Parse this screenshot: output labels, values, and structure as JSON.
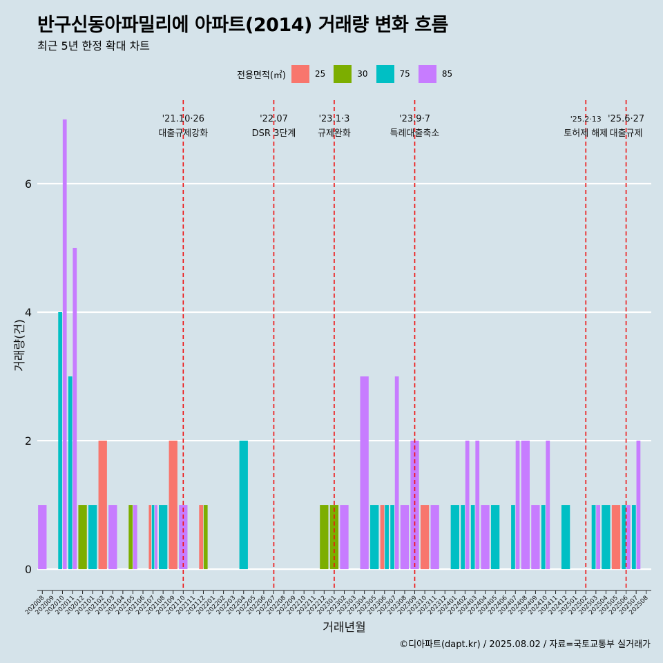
{
  "title": "반구신동아파밀리에 아파트(2014) 거래량 변화 흐름",
  "subtitle": "최근 5년 한정 확대 차트",
  "caption": "©디아파트(dapt.kr) / 2025.08.02 / 자료=국토교통부 실거래가",
  "legend": {
    "title": "전용면적(㎡)",
    "items": [
      {
        "label": "25",
        "color": "#F8766D"
      },
      {
        "label": "30",
        "color": "#7CAE00"
      },
      {
        "label": "75",
        "color": "#00BFC4"
      },
      {
        "label": "85",
        "color": "#C77CFF"
      }
    ]
  },
  "chart_data": {
    "type": "bar",
    "position": "dodge",
    "xlabel": "거래년월",
    "ylabel": "거래량(건)",
    "ylim": [
      -0.3,
      7.3
    ],
    "yticks": [
      0,
      2,
      4,
      6
    ],
    "categories": [
      "202008",
      "202009",
      "202010",
      "202011",
      "202012",
      "202101",
      "202102",
      "202103",
      "202104",
      "202105",
      "202106",
      "202107",
      "202108",
      "202109",
      "202110",
      "202111",
      "202112",
      "202201",
      "202202",
      "202203",
      "202204",
      "202205",
      "202206",
      "202207",
      "202208",
      "202209",
      "202210",
      "202211",
      "202212",
      "202301",
      "202302",
      "202303",
      "202304",
      "202305",
      "202306",
      "202307",
      "202308",
      "202309",
      "202310",
      "202311",
      "202312",
      "202401",
      "202402",
      "202403",
      "202404",
      "202405",
      "202406",
      "202407",
      "202408",
      "202409",
      "202410",
      "202411",
      "202412",
      "202501",
      "202502",
      "202503",
      "202504",
      "202505",
      "202506",
      "202507",
      "202508"
    ],
    "series": [
      {
        "name": "25",
        "color": "#F8766D",
        "points": [
          [
            "202102",
            2
          ],
          [
            "202107",
            1
          ],
          [
            "202109",
            2
          ],
          [
            "202112",
            1
          ],
          [
            "202306",
            1
          ],
          [
            "202310",
            1
          ],
          [
            "202505",
            1
          ]
        ]
      },
      {
        "name": "30",
        "color": "#7CAE00",
        "points": [
          [
            "202012",
            1
          ],
          [
            "202105",
            1
          ],
          [
            "202112",
            1
          ],
          [
            "202212",
            1
          ],
          [
            "202301",
            1
          ]
        ]
      },
      {
        "name": "75",
        "color": "#00BFC4",
        "points": [
          [
            "202010",
            4
          ],
          [
            "202011",
            3
          ],
          [
            "202101",
            1
          ],
          [
            "202107",
            1
          ],
          [
            "202108",
            1
          ],
          [
            "202204",
            2
          ],
          [
            "202305",
            1
          ],
          [
            "202306",
            1
          ],
          [
            "202307",
            1
          ],
          [
            "202401",
            1
          ],
          [
            "202402",
            1
          ],
          [
            "202403",
            1
          ],
          [
            "202405",
            1
          ],
          [
            "202407",
            1
          ],
          [
            "202410",
            1
          ],
          [
            "202412",
            1
          ],
          [
            "202503",
            1
          ],
          [
            "202504",
            1
          ],
          [
            "202506",
            1
          ],
          [
            "202507",
            1
          ]
        ]
      },
      {
        "name": "85",
        "color": "#C77CFF",
        "points": [
          [
            "202008",
            1
          ],
          [
            "202010",
            7
          ],
          [
            "202011",
            5
          ],
          [
            "202103",
            1
          ],
          [
            "202105",
            1
          ],
          [
            "202107",
            1
          ],
          [
            "202110",
            1
          ],
          [
            "202302",
            1
          ],
          [
            "202304",
            3
          ],
          [
            "202307",
            3
          ],
          [
            "202308",
            1
          ],
          [
            "202309",
            2
          ],
          [
            "202311",
            1
          ],
          [
            "202402",
            2
          ],
          [
            "202403",
            2
          ],
          [
            "202404",
            1
          ],
          [
            "202407",
            2
          ],
          [
            "202408",
            2
          ],
          [
            "202409",
            1
          ],
          [
            "202410",
            2
          ],
          [
            "202503",
            1
          ],
          [
            "202506",
            1
          ],
          [
            "202507",
            2
          ]
        ]
      }
    ],
    "annotations": [
      {
        "month": "202110",
        "date": "'21.10·26",
        "label": "대출규제강화"
      },
      {
        "month": "202207",
        "date": "'22.07",
        "label": "DSR 3단계"
      },
      {
        "month": "202301",
        "date": "'23.1·3",
        "label": "규제완화"
      },
      {
        "month": "202309",
        "date": "'23.9·7",
        "label": "특례대출축소"
      },
      {
        "month": "202502",
        "date": "'25.2·13",
        "label": "토허제 해제"
      },
      {
        "month": "202506",
        "date": "'25.6·27",
        "label": "대출규제"
      }
    ]
  }
}
